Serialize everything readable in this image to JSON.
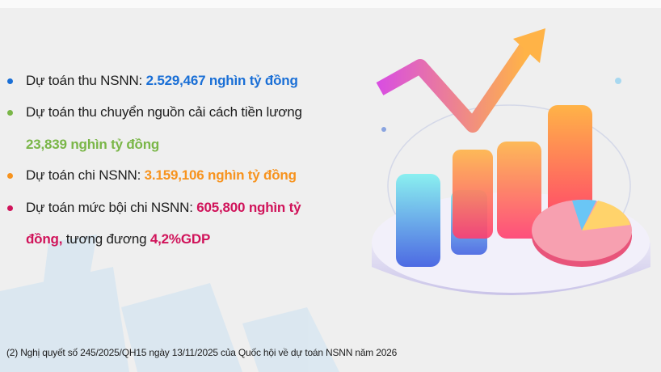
{
  "colors": {
    "blue": "#1a6fd6",
    "green": "#7ab648",
    "orange": "#f7931e",
    "crimson": "#d0135a"
  },
  "items": [
    {
      "label": "Dự toán thu NSNN: ",
      "value": "2.529,467  nghìn tỷ đồng",
      "color": "blue"
    },
    {
      "label": "Dự toán thu chuyển nguồn cải cách tiền lương",
      "value": "23,839 nghìn tỷ đồng",
      "color": "green"
    },
    {
      "label": "Dự toán chi NSNN: ",
      "value": "3.159,106 nghìn tỷ đồng",
      "color": "orange"
    },
    {
      "label": "Dự toán mức bội chi NSNN: ",
      "value": "605,800 nghìn tỷ",
      "value_cont": "đồng,",
      "suffix": " tương đương ",
      "suffix_value": "4,2%GDP",
      "color": "crimson"
    }
  ],
  "footnote": "(2) Nghị quyết số 245/2025/QH15 ngày 13/11/2025 của Quốc hội về dự toán NSNN năm 2026",
  "illustration": {
    "icons": [
      "bar-chart-icon",
      "trend-arrow-icon",
      "pie-chart-icon"
    ]
  }
}
